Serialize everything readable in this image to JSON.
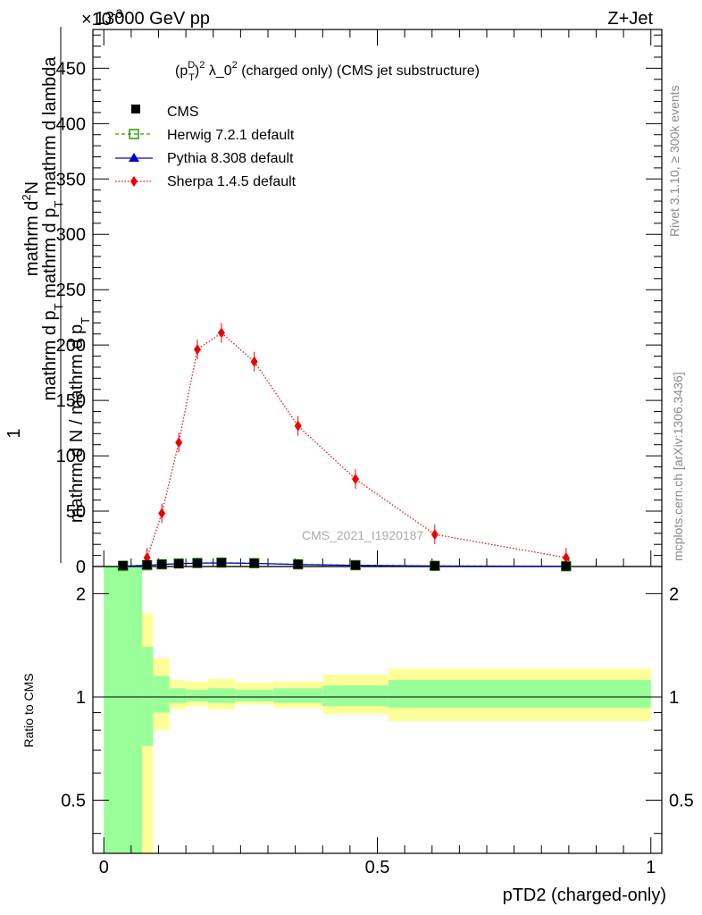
{
  "header": {
    "energy": "13000 GeV pp",
    "process": "Z+Jet",
    "exponent": "×10",
    "exponent_power": "-3"
  },
  "side": {
    "rivet": "Rivet 3.1.10, ≥ 300k events",
    "mcplots": "mcplots.cern.ch [arXiv:1306.3436]"
  },
  "colors": {
    "cms": "#000000",
    "herwig": "#339900",
    "pythia": "#0000cc",
    "sherpa": "#ee0000",
    "band_stat": "#99ff99",
    "band_total": "#ffff99"
  },
  "chart_data": [
    {
      "type": "line",
      "panel": "main",
      "title": "(p_T^D)^2 λ_0^2 (charged only) (CMS jet substructure)",
      "title_parts": {
        "a": "(p",
        "sub": "T",
        "sup": "D",
        "b": ")",
        "sup2": "2",
        "c": " λ_0",
        "sup3": "2",
        "d": " (charged only) (CMS jet substructure)"
      },
      "ylabel": "1 / mathrm d N / mathrm d p_T mathrm d p_T mathrm d lambda mathrm d²N",
      "ylabel_parts": {
        "numerator": "mathrm d²N",
        "numerator_a": "mathrm d",
        "numerator_sup": "2",
        "numerator_b": "N",
        "num2_a": "mathrm d p",
        "num2_sub": "T",
        "num2_b": " mathrm d p",
        "num2_sub2": "T",
        "num2_c": " mathrm d lambda",
        "den_one": "1",
        "den_a": "mathrm d N / mathrm d p",
        "den_sub": "T"
      },
      "watermark": "CMS_2021_I1920187",
      "xlim": [
        -0.02,
        1.02
      ],
      "ylim": [
        0,
        485
      ],
      "yticks": [
        0,
        50,
        100,
        150,
        200,
        250,
        300,
        350,
        400,
        450
      ],
      "legend_position": "top-left",
      "series": [
        {
          "name": "CMS",
          "x": [
            0.035,
            0.079,
            0.106,
            0.137,
            0.171,
            0.215,
            0.275,
            0.355,
            0.46,
            0.605,
            0.845
          ],
          "y": [
            1.0,
            1.5,
            2.0,
            2.5,
            3.0,
            3.5,
            3.0,
            2.0,
            1.2,
            0.6,
            0.3
          ]
        },
        {
          "name": "Herwig 7.2.1 default",
          "x": [
            0.035,
            0.079,
            0.106,
            0.137,
            0.171,
            0.215,
            0.275,
            0.355,
            0.46,
            0.605,
            0.845
          ],
          "y": [
            0.5,
            1.2,
            2.0,
            2.8,
            3.2,
            3.5,
            3.0,
            2.0,
            1.2,
            0.6,
            0.3
          ]
        },
        {
          "name": "Pythia 8.308 default",
          "x": [
            0.035,
            0.079,
            0.106,
            0.137,
            0.171,
            0.215,
            0.275,
            0.355,
            0.46,
            0.605,
            0.845
          ],
          "y": [
            0.3,
            1.0,
            1.8,
            2.5,
            3.0,
            3.2,
            2.8,
            1.8,
            1.0,
            0.5,
            0.2
          ]
        },
        {
          "name": "Sherpa 1.4.5 default",
          "x": [
            0.079,
            0.106,
            0.137,
            0.171,
            0.215,
            0.275,
            0.355,
            0.46,
            0.605,
            0.845
          ],
          "y": [
            8,
            48,
            112,
            196,
            211,
            185,
            127,
            79,
            29,
            8
          ]
        }
      ]
    },
    {
      "type": "area",
      "panel": "ratio",
      "ylabel": "Ratio to CMS",
      "xlabel": "pTD2 (charged-only)",
      "xlim": [
        -0.02,
        1.02
      ],
      "ylim": [
        0.35,
        2.4
      ],
      "log_y": true,
      "yticks": [
        0.5,
        1,
        2
      ],
      "xticks": [
        0,
        0.5,
        1
      ],
      "reference": 1,
      "bins": [
        {
          "lo": 0.0,
          "hi": 0.07,
          "stat": [
            0.35,
            2.4
          ],
          "total": [
            0.35,
            2.4
          ]
        },
        {
          "lo": 0.07,
          "hi": 0.09,
          "stat": [
            0.72,
            1.4
          ],
          "total": [
            0.35,
            1.75
          ]
        },
        {
          "lo": 0.09,
          "hi": 0.12,
          "stat": [
            0.9,
            1.15
          ],
          "total": [
            0.8,
            1.3
          ]
        },
        {
          "lo": 0.12,
          "hi": 0.15,
          "stat": [
            0.96,
            1.06
          ],
          "total": [
            0.92,
            1.12
          ]
        },
        {
          "lo": 0.15,
          "hi": 0.19,
          "stat": [
            0.97,
            1.05
          ],
          "total": [
            0.94,
            1.11
          ]
        },
        {
          "lo": 0.19,
          "hi": 0.24,
          "stat": [
            0.96,
            1.06
          ],
          "total": [
            0.92,
            1.13
          ]
        },
        {
          "lo": 0.24,
          "hi": 0.31,
          "stat": [
            0.97,
            1.05
          ],
          "total": [
            0.95,
            1.1
          ]
        },
        {
          "lo": 0.31,
          "hi": 0.4,
          "stat": [
            0.96,
            1.06
          ],
          "total": [
            0.93,
            1.11
          ]
        },
        {
          "lo": 0.4,
          "hi": 0.52,
          "stat": [
            0.94,
            1.08
          ],
          "total": [
            0.89,
            1.16
          ]
        },
        {
          "lo": 0.52,
          "hi": 1.0,
          "stat": [
            0.93,
            1.12
          ],
          "total": [
            0.85,
            1.21
          ]
        }
      ]
    }
  ]
}
